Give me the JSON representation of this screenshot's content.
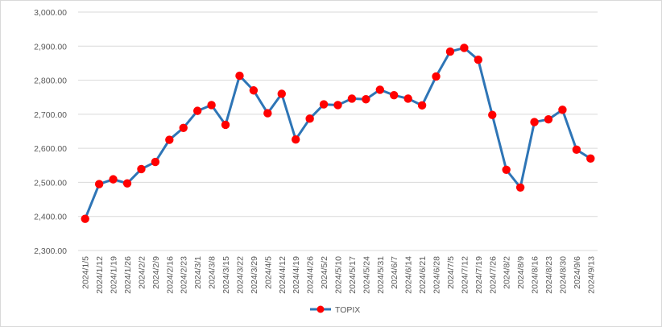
{
  "chart_data": {
    "type": "line",
    "title": "",
    "xlabel": "",
    "ylabel": "",
    "ylim": [
      2300,
      3000
    ],
    "ytick_step": 100,
    "ytick_labels": [
      "2,300.00",
      "2,400.00",
      "2,500.00",
      "2,600.00",
      "2,700.00",
      "2,800.00",
      "2,900.00",
      "3,000.00"
    ],
    "grid": "horizontal",
    "legend_position": "bottom",
    "categories": [
      "2024/1/5",
      "2024/1/12",
      "2024/1/19",
      "2024/1/26",
      "2024/2/2",
      "2024/2/9",
      "2024/2/16",
      "2024/2/23",
      "2024/3/1",
      "2024/3/8",
      "2024/3/15",
      "2024/3/22",
      "2024/3/29",
      "2024/4/5",
      "2024/4/12",
      "2024/4/19",
      "2024/4/26",
      "2024/5/2",
      "2024/5/10",
      "2024/5/17",
      "2024/5/24",
      "2024/5/31",
      "2024/6/7",
      "2024/6/14",
      "2024/6/21",
      "2024/6/28",
      "2024/7/5",
      "2024/7/12",
      "2024/7/19",
      "2024/7/26",
      "2024/8/2",
      "2024/8/9",
      "2024/8/16",
      "2024/8/23",
      "2024/8/30",
      "2024/9/6",
      "2024/9/13"
    ],
    "series": [
      {
        "name": "TOPIX",
        "line_color": "#2e75b6",
        "marker_color": "#ff0000",
        "values": [
          2393,
          2495,
          2509,
          2497,
          2539,
          2560,
          2625,
          2660,
          2710,
          2727,
          2669,
          2813,
          2770,
          2703,
          2760,
          2626,
          2687,
          2729,
          2727,
          2746,
          2744,
          2772,
          2756,
          2746,
          2726,
          2811,
          2884,
          2895,
          2860,
          2698,
          2537,
          2485,
          2677,
          2685,
          2713,
          2596,
          2570
        ]
      }
    ]
  }
}
